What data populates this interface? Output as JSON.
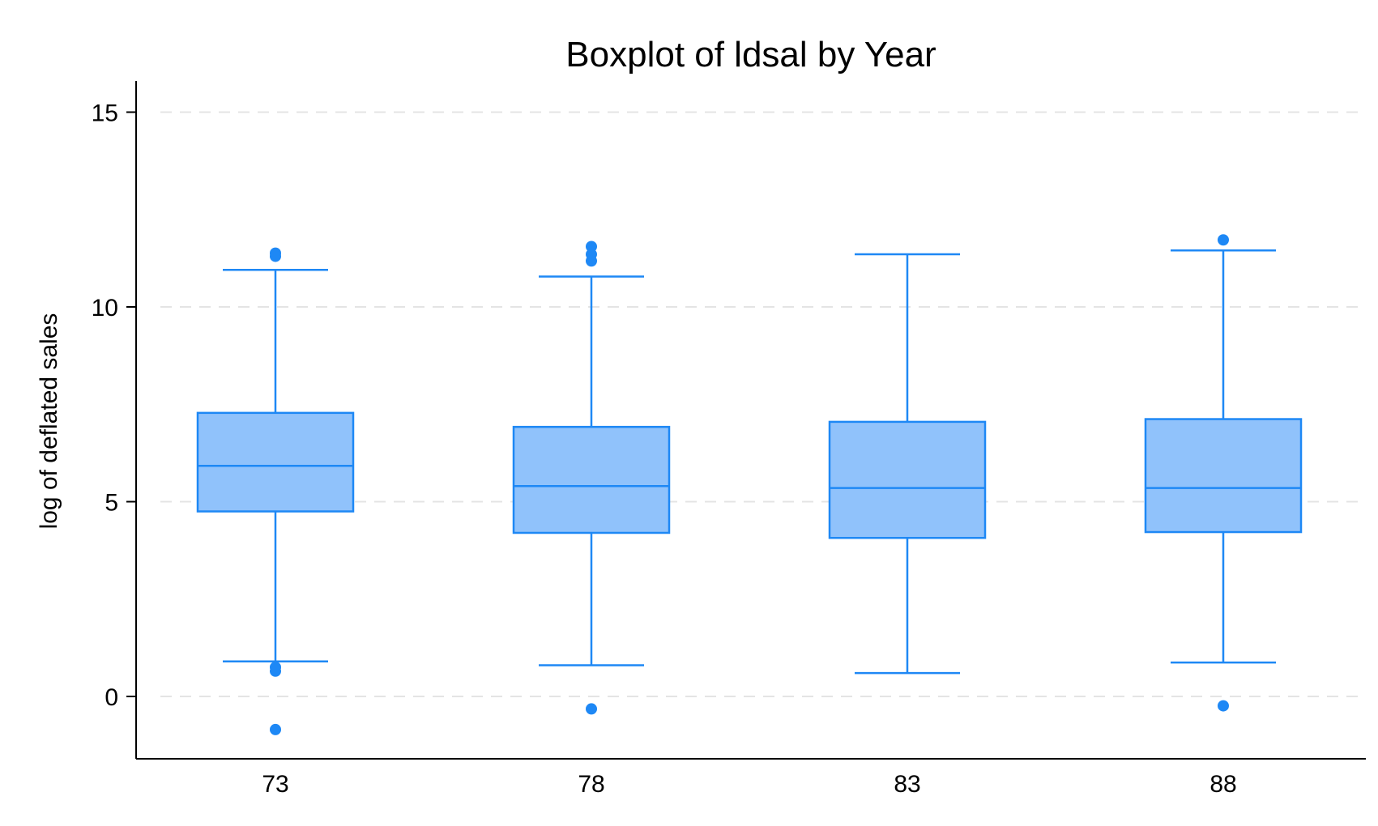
{
  "chart_data": {
    "type": "boxplot",
    "title": "Boxplot of ldsal by Year",
    "ylabel": "log of deflated sales",
    "xlabel": "",
    "categories": [
      "73",
      "78",
      "83",
      "88"
    ],
    "ylim": [
      -1.6,
      15.8
    ],
    "yticks": [
      0,
      5,
      10,
      15
    ],
    "grid": true,
    "colors": {
      "stroke": "#1e88f5",
      "fill": "#90c2fb",
      "grid": "#e4e4e4"
    },
    "boxes": [
      {
        "category": "73",
        "whisker_low": 0.9,
        "q1": 4.75,
        "median": 5.92,
        "q3": 7.28,
        "whisker_high": 10.95,
        "outliers": [
          11.38,
          11.3,
          0.75,
          0.65,
          -0.85
        ]
      },
      {
        "category": "78",
        "whisker_low": 0.8,
        "q1": 4.2,
        "median": 5.4,
        "q3": 6.92,
        "whisker_high": 10.78,
        "outliers": [
          11.55,
          11.35,
          11.18,
          -0.32
        ]
      },
      {
        "category": "83",
        "whisker_low": 0.6,
        "q1": 4.07,
        "median": 5.35,
        "q3": 7.05,
        "whisker_high": 11.35,
        "outliers": []
      },
      {
        "category": "88",
        "whisker_low": 0.87,
        "q1": 4.22,
        "median": 5.35,
        "q3": 7.12,
        "whisker_high": 11.45,
        "outliers": [
          11.72,
          -0.24
        ]
      }
    ]
  }
}
